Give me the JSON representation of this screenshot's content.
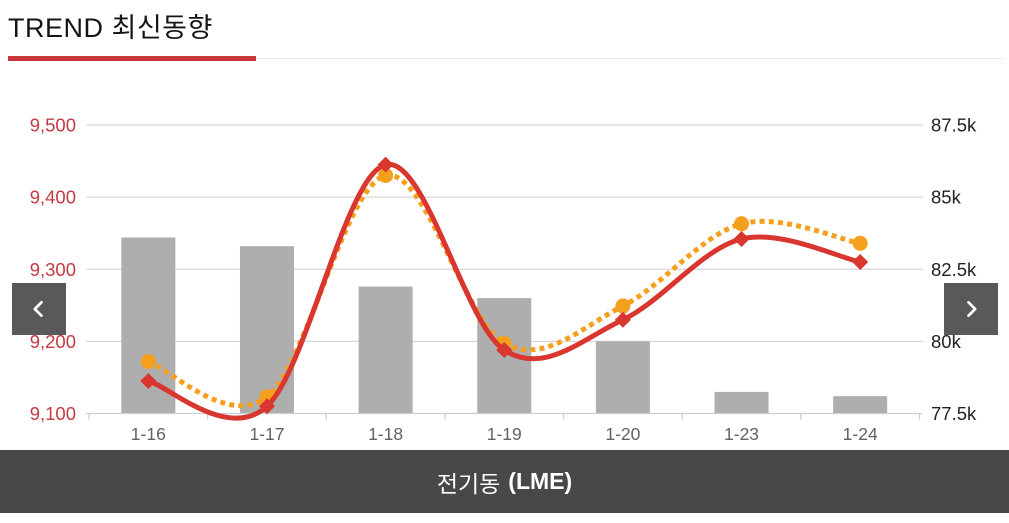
{
  "header": {
    "title": "TREND 최신동향"
  },
  "accent": {
    "underline_color": "#c9363c"
  },
  "nav": {
    "prev_icon": "chevron-left",
    "next_icon": "chevron-right",
    "button_color": "#59595b"
  },
  "footer": {
    "series_name": "전기동",
    "series_suffix": "(LME)",
    "background_color": "#484848"
  },
  "chart_data": {
    "type": "combo",
    "categories": [
      "1-16",
      "1-17",
      "1-18",
      "1-19",
      "1-20",
      "1-23",
      "1-24"
    ],
    "series": [
      {
        "id": "volume-bars",
        "type": "bar",
        "axis": "right",
        "color": "#aeaeae",
        "values": [
          83600,
          83300,
          81900,
          81500,
          80000,
          78250,
          78100
        ]
      },
      {
        "id": "price-line-dotted",
        "type": "line",
        "axis": "left",
        "color": "#f5a01d",
        "dashed": true,
        "marker": "circle",
        "values": [
          9172,
          9123,
          9430,
          9197,
          9249,
          9363,
          9336
        ]
      },
      {
        "id": "price-line-solid",
        "type": "line",
        "axis": "left",
        "color": "#d8362f",
        "dashed": false,
        "marker": "diamond",
        "values": [
          9145,
          9110,
          9445,
          9188,
          9230,
          9342,
          9310
        ]
      }
    ],
    "left_axis": {
      "min": 9100,
      "max": 9500,
      "ticks": [
        "9,500",
        "9,400",
        "9,300",
        "9,200",
        "9,100"
      ],
      "color": "#c43b41"
    },
    "right_axis": {
      "min": 77500,
      "max": 87500,
      "ticks": [
        "87.5k",
        "85k",
        "82.5k",
        "80k",
        "77.5k"
      ],
      "color": "#222222"
    },
    "x_axis": {
      "label_color": "#5f6368"
    },
    "grid_color": "#d7d7d7",
    "axis_line_color": "#c9cfd8",
    "bottom_label": "전기동 (LME)",
    "legend": "none",
    "grid": "on"
  }
}
